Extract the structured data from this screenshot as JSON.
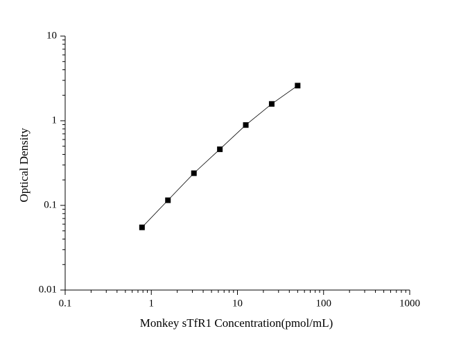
{
  "chart_data": {
    "type": "scatter-line",
    "x_label": "Monkey sTfR1 Concentration(pmol/mL)",
    "y_label": "Optical Density",
    "log_x": true,
    "log_y": true,
    "xlim": [
      0.1,
      1000
    ],
    "xticks": [
      0.1,
      1,
      10,
      100,
      1000
    ],
    "ylim": [
      0.01,
      10
    ],
    "yticks": [
      0.01,
      0.1,
      1,
      10
    ],
    "series": [
      {
        "color": "#000000",
        "x": [
          0.78,
          1.56,
          3.125,
          6.25,
          12.5,
          25,
          50
        ],
        "values": [
          0.055,
          0.115,
          0.24,
          0.46,
          0.89,
          1.58,
          2.6
        ]
      }
    ]
  }
}
